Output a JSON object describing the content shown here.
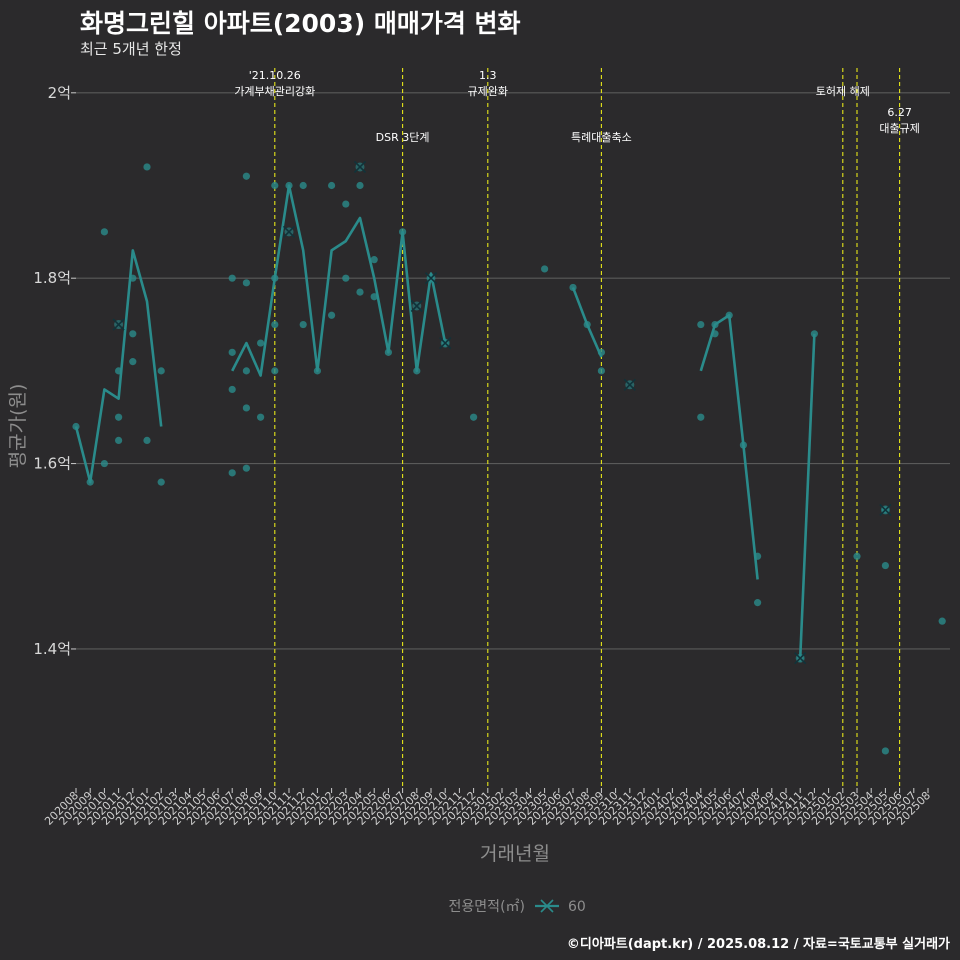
{
  "header": {
    "title": "화명그린힐 아파트(2003) 매매가격 변화",
    "subtitle": "최근 5개년 한정",
    "caption": "©디아파트(dapt.kr) / 2025.08.12 / 자료=국토교통부 실거래가"
  },
  "colors": {
    "background": "#2b2a2c",
    "series": "#2a8b8b",
    "vline": "#e6e619",
    "grid": "#5a5a5a"
  },
  "chart_data": {
    "type": "line",
    "xlabel": "거래년월",
    "ylabel": "평균가(원)",
    "ylim": [
      1.25,
      2.03
    ],
    "yticks": [
      {
        "value": 1.4,
        "label": "1.4억"
      },
      {
        "value": 1.6,
        "label": "1.6억"
      },
      {
        "value": 1.8,
        "label": "1.8억"
      },
      {
        "value": 2.0,
        "label": "2억"
      }
    ],
    "categories": [
      "202008",
      "202009",
      "202010",
      "202011",
      "202012",
      "202101",
      "202102",
      "202103",
      "202104",
      "202105",
      "202106",
      "202107",
      "202108",
      "202109",
      "202110",
      "202111",
      "202112",
      "202201",
      "202202",
      "202203",
      "202204",
      "202205",
      "202206",
      "202207",
      "202208",
      "202209",
      "202210",
      "202211",
      "202212",
      "202301",
      "202302",
      "202303",
      "202304",
      "202305",
      "202306",
      "202307",
      "202308",
      "202309",
      "202310",
      "202311",
      "202312",
      "202401",
      "202402",
      "202403",
      "202404",
      "202405",
      "202406",
      "202407",
      "202408",
      "202409",
      "202410",
      "202411",
      "202412",
      "202501",
      "202502",
      "202503",
      "202504",
      "202505",
      "202506",
      "202507",
      "202508"
    ],
    "legend": {
      "title": "전용면적(㎡)",
      "entries": [
        "60"
      ]
    },
    "series": [
      {
        "name": "60",
        "line": [
          [
            0,
            1.64
          ],
          [
            1,
            1.58
          ],
          [
            2,
            1.68
          ],
          [
            3,
            1.67
          ],
          [
            4,
            1.83
          ],
          [
            5,
            1.775
          ],
          [
            6,
            1.64
          ],
          null,
          [
            11,
            1.7
          ],
          [
            12,
            1.73
          ],
          [
            13,
            1.695
          ],
          [
            14,
            1.8
          ],
          [
            15,
            1.9
          ],
          [
            16,
            1.83
          ],
          [
            17,
            1.7
          ],
          [
            18,
            1.83
          ],
          [
            19,
            1.84
          ],
          [
            20,
            1.865
          ],
          [
            21,
            1.8
          ],
          [
            22,
            1.72
          ],
          [
            23,
            1.85
          ],
          [
            24,
            1.7
          ],
          [
            25,
            1.805
          ],
          [
            26,
            1.73
          ],
          null,
          [
            35,
            1.79
          ],
          [
            36,
            1.75
          ],
          [
            37,
            1.715
          ],
          null,
          [
            44,
            1.7
          ],
          [
            45,
            1.75
          ],
          [
            46,
            1.76
          ],
          [
            47,
            1.62
          ],
          [
            48,
            1.475
          ],
          null,
          [
            51,
            1.39
          ],
          [
            52,
            1.74
          ]
        ],
        "points": [
          [
            0,
            1.64
          ],
          [
            1,
            1.58
          ],
          [
            2,
            1.85
          ],
          [
            2,
            1.6
          ],
          [
            3,
            1.7
          ],
          [
            3,
            1.65
          ],
          [
            3,
            1.625
          ],
          [
            4,
            1.8
          ],
          [
            4,
            1.74
          ],
          [
            4,
            1.71
          ],
          [
            5,
            1.92
          ],
          [
            5,
            1.625
          ],
          [
            6,
            1.7
          ],
          [
            6,
            1.58
          ],
          [
            11,
            1.8
          ],
          [
            11,
            1.72
          ],
          [
            11,
            1.68
          ],
          [
            11,
            1.59
          ],
          [
            12,
            1.91
          ],
          [
            12,
            1.795
          ],
          [
            12,
            1.7
          ],
          [
            12,
            1.66
          ],
          [
            12,
            1.595
          ],
          [
            13,
            1.73
          ],
          [
            13,
            1.65
          ],
          [
            14,
            1.9
          ],
          [
            14,
            1.8
          ],
          [
            14,
            1.75
          ],
          [
            14,
            1.7
          ],
          [
            15,
            1.9
          ],
          [
            16,
            1.9
          ],
          [
            16,
            1.75
          ],
          [
            17,
            1.7
          ],
          [
            18,
            1.9
          ],
          [
            18,
            1.76
          ],
          [
            19,
            1.88
          ],
          [
            19,
            1.8
          ],
          [
            20,
            1.9
          ],
          [
            20,
            1.785
          ],
          [
            21,
            1.82
          ],
          [
            21,
            1.78
          ],
          [
            22,
            1.72
          ],
          [
            23,
            1.85
          ],
          [
            24,
            1.7
          ],
          [
            25,
            1.8
          ],
          [
            26,
            1.73
          ],
          [
            28,
            1.65
          ],
          [
            33,
            1.81
          ],
          [
            35,
            1.79
          ],
          [
            36,
            1.75
          ],
          [
            37,
            1.72
          ],
          [
            37,
            1.7
          ],
          [
            44,
            1.75
          ],
          [
            44,
            1.65
          ],
          [
            45,
            1.75
          ],
          [
            45,
            1.74
          ],
          [
            46,
            1.76
          ],
          [
            47,
            1.62
          ],
          [
            48,
            1.5
          ],
          [
            48,
            1.45
          ],
          [
            51,
            1.39
          ],
          [
            52,
            1.74
          ],
          [
            55,
            1.5
          ],
          [
            57,
            1.55
          ],
          [
            57,
            1.49
          ],
          [
            57,
            1.29
          ],
          [
            61,
            1.43
          ]
        ],
        "markers": [
          [
            3,
            1.75
          ],
          [
            15,
            1.85
          ],
          [
            20,
            1.92
          ],
          [
            24,
            1.77
          ],
          [
            25,
            1.8
          ],
          [
            26,
            1.73
          ],
          [
            39,
            1.685
          ],
          [
            51,
            1.39
          ],
          [
            57,
            1.55
          ]
        ]
      }
    ],
    "events": [
      {
        "at": 14.0,
        "label": "'21.10.26\n가계부채관리강화",
        "row": 1
      },
      {
        "at": 23.0,
        "label": "DSR 3단계",
        "row": 2
      },
      {
        "at": 29.0,
        "label": "1.3\n규제완화",
        "row": 1
      },
      {
        "at": 37.0,
        "label": "특례대출축소",
        "row": 2
      },
      {
        "at": 54.0,
        "label": "토허제 해제",
        "row": 1
      },
      {
        "at": 55.0,
        "label": "",
        "row": 1
      },
      {
        "at": 58.0,
        "label": "6.27\n대출규제",
        "row": 3
      }
    ]
  }
}
